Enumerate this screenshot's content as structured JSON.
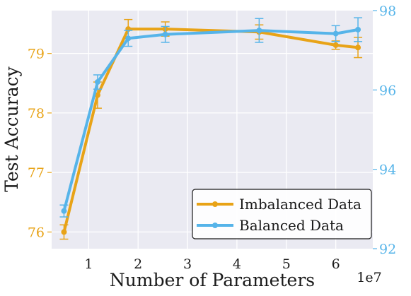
{
  "chart_data": {
    "type": "line",
    "xlabel": "Number of Parameters",
    "x_offset_label": "1e7",
    "ylabel": "Test Accuracy",
    "x_ticks": [
      1,
      2,
      3,
      4,
      5,
      6
    ],
    "x_tick_labels": [
      "1",
      "2",
      "3",
      "4",
      "5",
      "6"
    ],
    "xlim": [
      0.25,
      6.75
    ],
    "ylim_left": [
      75.72,
      79.72
    ],
    "ylim_right": [
      92.0,
      98.0
    ],
    "y_left_ticks": [
      76,
      77,
      78,
      79
    ],
    "y_left_tick_labels": [
      "76",
      "77",
      "78",
      "79"
    ],
    "y_right_ticks": [
      92,
      94,
      96,
      98
    ],
    "y_right_tick_labels": [
      "92",
      "94",
      "96",
      "98"
    ],
    "grid": true,
    "legend_position": "bottom-right",
    "colors": {
      "imbalanced": "#e8a317",
      "balanced": "#56b4e9",
      "background": "#eaeaf2"
    },
    "series": [
      {
        "name": "Imbalanced Data",
        "axis": "left",
        "color": "#e8a317",
        "x": [
          0.5,
          1.18,
          1.8,
          2.55,
          4.45,
          6.0,
          6.45
        ],
        "y": [
          76.0,
          78.3,
          79.41,
          79.41,
          79.36,
          79.14,
          79.1
        ],
        "err": [
          0.12,
          0.22,
          0.16,
          0.12,
          0.12,
          0.07,
          0.17
        ]
      },
      {
        "name": "Balanced Data",
        "axis": "right",
        "color": "#56b4e9",
        "x": [
          0.5,
          1.18,
          1.8,
          2.55,
          4.45,
          6.0,
          6.45
        ],
        "y": [
          92.95,
          96.2,
          97.3,
          97.4,
          97.5,
          97.42,
          97.52
        ],
        "err": [
          0.15,
          0.18,
          0.2,
          0.2,
          0.3,
          0.2,
          0.3
        ]
      }
    ]
  }
}
